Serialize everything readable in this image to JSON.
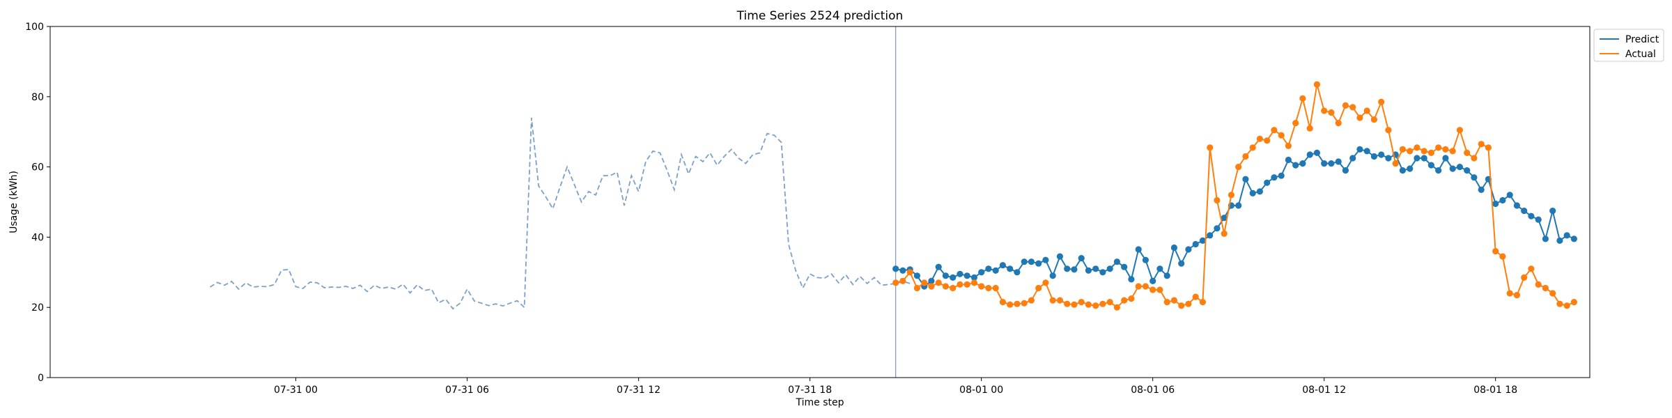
{
  "chart_data": {
    "type": "line",
    "title": "Time Series 2524 prediction",
    "xlabel": "Time step",
    "ylabel": "Usage (kWh)",
    "ylim": [
      0,
      100
    ],
    "yticks": [
      "0",
      "20",
      "40",
      "60",
      "80",
      "100"
    ],
    "xlim_hours": [
      -8.6,
      45.3
    ],
    "xticks": [
      {
        "label": "07-31 00",
        "hour": 0
      },
      {
        "label": "07-31 06",
        "hour": 6
      },
      {
        "label": "07-31 12",
        "hour": 12
      },
      {
        "label": "07-31 18",
        "hour": 18
      },
      {
        "label": "08-01 00",
        "hour": 24
      },
      {
        "label": "08-01 06",
        "hour": 30
      },
      {
        "label": "08-01 12",
        "hour": 36
      },
      {
        "label": "08-01 18",
        "hour": 42
      }
    ],
    "forecast_start_hour": 21,
    "history": {
      "start_hour": -3,
      "step_hours": 0.25,
      "color": "#7ba0cc",
      "values": [
        25.8,
        27.1,
        26.3,
        27.4,
        25.2,
        27.0,
        25.8,
        26.0,
        25.9,
        26.5,
        30.6,
        30.8,
        25.9,
        25.4,
        27.2,
        27.0,
        25.6,
        25.8,
        25.7,
        26.0,
        25.4,
        26.3,
        24.5,
        26.3,
        25.4,
        25.8,
        25.2,
        26.6,
        24.1,
        26.4,
        24.8,
        25.2,
        21.3,
        22.3,
        19.6,
        21.2,
        25.2,
        21.8,
        21.2,
        20.5,
        21.0,
        20.4,
        21.2,
        21.9,
        20.0,
        74.0,
        54.6,
        51.5,
        48.1,
        54.3,
        60.0,
        55.0,
        50.0,
        53.0,
        52.0,
        57.5,
        57.5,
        58.5,
        49.0,
        57.5,
        53.0,
        61.5,
        64.5,
        64.0,
        59.0,
        53.5,
        63.5,
        58.0,
        63.0,
        61.5,
        64.0,
        60.5,
        63.0,
        65.0,
        62.5,
        61.0,
        63.5,
        64.0,
        69.5,
        69.0,
        67.0,
        38.0,
        30.5,
        25.5,
        29.5,
        28.5,
        28.3,
        29.5,
        27.0,
        29.3,
        26.5,
        28.8,
        26.8,
        28.5,
        26.3,
        26.5,
        26.8,
        27.4,
        26.8
      ]
    },
    "series": [
      {
        "name": "Predict",
        "color": "#1f77b4",
        "start_hour": 21,
        "step_hours": 0.25,
        "values": [
          31.0,
          30.5,
          30.8,
          29.0,
          26.0,
          27.5,
          31.5,
          29.0,
          28.5,
          29.5,
          29.0,
          28.5,
          30.0,
          31.0,
          30.5,
          32.0,
          31.0,
          30.0,
          33.0,
          33.0,
          32.5,
          33.5,
          29.0,
          34.5,
          31.0,
          30.8,
          34.0,
          30.5,
          31.0,
          30.0,
          31.0,
          33.0,
          31.5,
          28.0,
          36.5,
          33.5,
          27.5,
          31.0,
          29.0,
          37.0,
          32.5,
          36.5,
          38.0,
          39.0,
          40.5,
          42.5,
          45.5,
          49.0,
          49.0,
          56.5,
          52.5,
          53.0,
          55.5,
          57.0,
          57.5,
          62.0,
          60.5,
          61.0,
          63.5,
          64.0,
          61.0,
          61.0,
          61.5,
          59.0,
          62.5,
          65.0,
          64.5,
          63.0,
          63.5,
          62.5,
          63.5,
          59.0,
          59.5,
          62.5,
          62.5,
          60.5,
          59.0,
          62.5,
          59.5,
          60.0,
          59.0,
          57.0,
          53.5,
          56.5,
          49.5,
          50.5,
          52.0,
          49.0,
          47.5,
          46.0,
          45.0,
          39.5,
          47.5,
          39.0,
          40.5,
          39.5
        ]
      },
      {
        "name": "Actual",
        "color": "#ff7f0e",
        "start_hour": 21,
        "step_hours": 0.25,
        "values": [
          27.0,
          27.5,
          30.0,
          25.5,
          27.0,
          26.0,
          27.0,
          26.0,
          25.5,
          26.5,
          26.5,
          27.0,
          26.0,
          25.5,
          25.5,
          21.5,
          20.8,
          21.0,
          21.2,
          22.0,
          25.5,
          27.0,
          22.0,
          22.0,
          21.0,
          20.8,
          21.5,
          20.8,
          20.5,
          21.0,
          21.5,
          20.0,
          22.0,
          22.5,
          26.0,
          26.0,
          25.0,
          25.0,
          21.5,
          22.0,
          20.5,
          21.0,
          23.0,
          21.5,
          65.5,
          50.5,
          41.0,
          52.0,
          60.0,
          63.0,
          65.5,
          68.0,
          67.5,
          70.5,
          69.0,
          66.0,
          72.5,
          79.5,
          71.0,
          83.5,
          76.0,
          75.5,
          72.5,
          77.5,
          77.0,
          74.0,
          76.0,
          73.5,
          78.5,
          70.5,
          61.0,
          65.0,
          64.5,
          65.5,
          64.5,
          64.0,
          65.5,
          65.0,
          64.5,
          70.5,
          64.0,
          62.5,
          66.5,
          65.5,
          36.0,
          34.5,
          24.0,
          23.5,
          28.5,
          31.0,
          26.5,
          25.5,
          24.0,
          21.0,
          20.5,
          21.5
        ]
      }
    ],
    "legend": {
      "placement": "upper-right-outside"
    }
  }
}
